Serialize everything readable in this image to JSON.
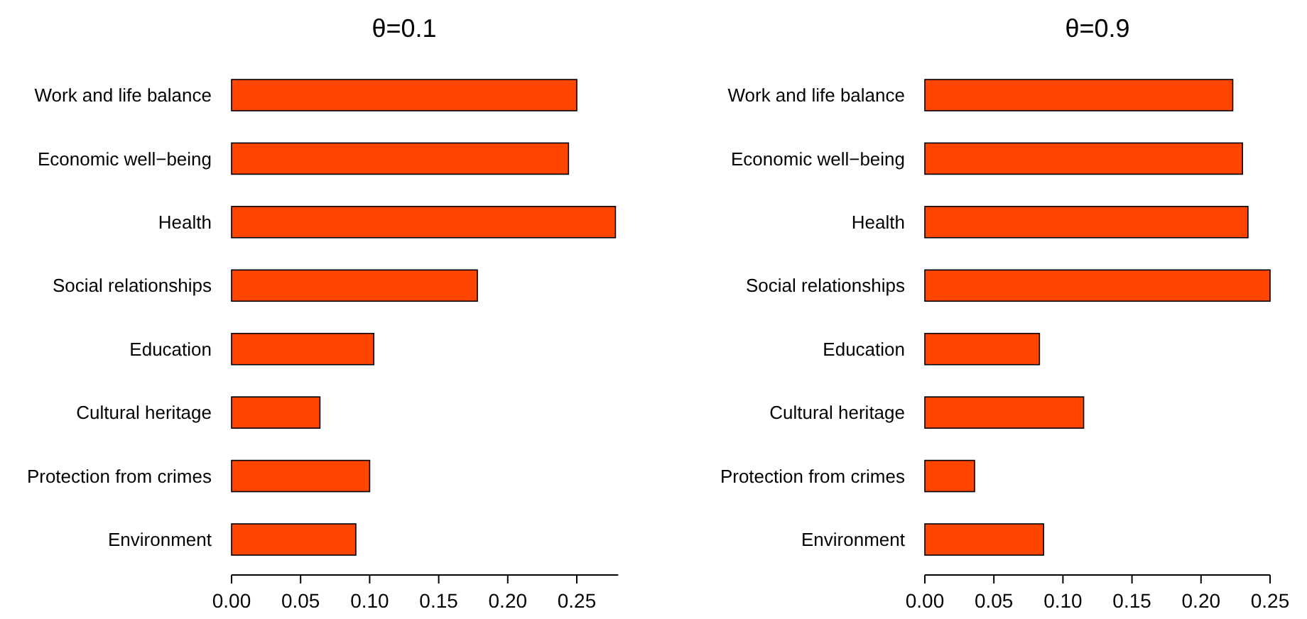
{
  "chart_data": [
    {
      "type": "bar",
      "orientation": "horizontal",
      "title": "θ=0.1",
      "categories": [
        "Work and life balance",
        "Economic well−being",
        "Health",
        "Social relationships",
        "Education",
        "Cultural heritage",
        "Protection from crimes",
        "Environment"
      ],
      "values": [
        0.25,
        0.244,
        0.278,
        0.178,
        0.103,
        0.064,
        0.1,
        0.09
      ],
      "color": "#ff4500",
      "xlim": [
        0,
        0.28
      ],
      "xticks": [
        {
          "value": 0,
          "label": "0.00"
        },
        {
          "value": 0.05,
          "label": "0.05"
        },
        {
          "value": 0.1,
          "label": "0.10"
        },
        {
          "value": 0.15,
          "label": "0.15"
        },
        {
          "value": 0.2,
          "label": "0.20"
        },
        {
          "value": 0.25,
          "label": "0.25"
        }
      ]
    },
    {
      "type": "bar",
      "orientation": "horizontal",
      "title": "θ=0.9",
      "categories": [
        "Work and life balance",
        "Economic well−being",
        "Health",
        "Social relationships",
        "Education",
        "Cultural heritage",
        "Protection from crimes",
        "Environment"
      ],
      "values": [
        0.223,
        0.23,
        0.234,
        0.25,
        0.083,
        0.115,
        0.036,
        0.086
      ],
      "color": "#ff4500",
      "xlim": [
        0,
        0.25
      ],
      "xticks": [
        {
          "value": 0,
          "label": "0.00"
        },
        {
          "value": 0.05,
          "label": "0.05"
        },
        {
          "value": 0.1,
          "label": "0.10"
        },
        {
          "value": 0.15,
          "label": "0.15"
        },
        {
          "value": 0.2,
          "label": "0.20"
        },
        {
          "value": 0.25,
          "label": "0.25"
        }
      ]
    }
  ]
}
